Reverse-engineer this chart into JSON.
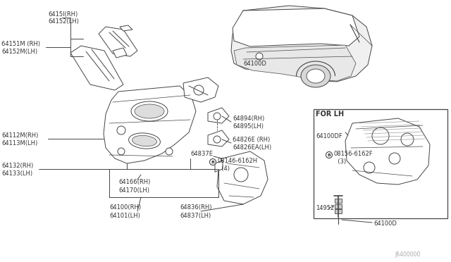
{
  "bg_color": "#ffffff",
  "line_color": "#444444",
  "text_color": "#333333",
  "light_gray": "#dddddd",
  "diagram_number": "J6400000",
  "labels": {
    "tl1": [
      "6415l(RH)",
      "64152(LH)"
    ],
    "tl2": [
      "64151M (RH)",
      "64152M(LH)"
    ],
    "ml1": [
      "64112M(RH)",
      "64113M(LH)"
    ],
    "ml2": [
      "64132(RH)",
      "64133(LH)"
    ],
    "mc1": "64166(RH)",
    "mc2": "64170(LH)",
    "bl1": [
      "64100(RH)",
      "64101(LH)"
    ],
    "bc1": [
      "64836(RH)",
      "64837(LH)"
    ],
    "car_label": "64100D",
    "rm1": [
      "64894(RH)",
      "64895(LH)"
    ],
    "rm2": [
      "64826E (RH)",
      "64826EA(LH)"
    ],
    "bolt1_label": [
      "08146-6162H",
      "  (4)"
    ],
    "bracket_label": "64837E",
    "for_lh": "FOR LH",
    "r1": "64100DF",
    "r_bolt": [
      "08156-6162F",
      "  (3)"
    ],
    "r2": "14952",
    "r3": "64100D",
    "watermark": "J6400000"
  }
}
